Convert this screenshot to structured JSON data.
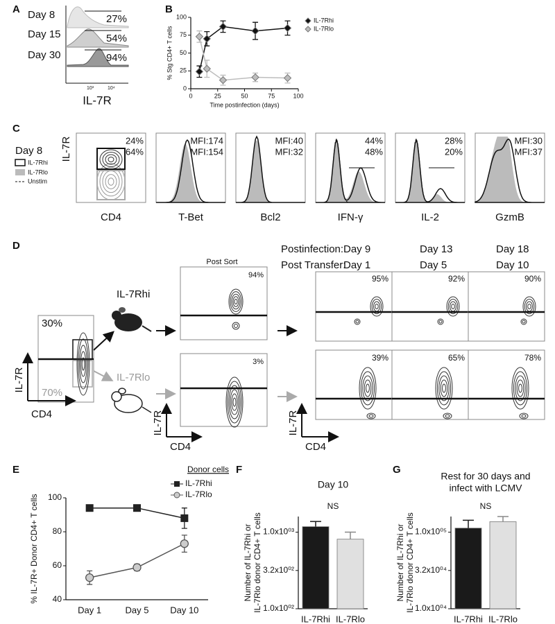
{
  "panel_labels": [
    "A",
    "B",
    "C",
    "D",
    "E",
    "F",
    "G"
  ],
  "panel_a": {
    "rows": [
      "Day 8",
      "Day 15",
      "Day 30"
    ],
    "percents": [
      "27%",
      "54%",
      "94%"
    ],
    "xlabel": "IL-7R",
    "ticks": [
      "10³",
      "10⁴"
    ]
  },
  "panel_c": {
    "day": "Day 8",
    "legend": [
      "IL-7Rhi",
      "IL-7Rlo",
      "Unstim"
    ],
    "ylabel": "IL-7R",
    "plots": [
      {
        "xlabel": "CD4",
        "hi": "24%",
        "lo": "64%"
      },
      {
        "xlabel": "T-Bet",
        "hi": "MFI:174",
        "lo": "MFI:154"
      },
      {
        "xlabel": "Bcl2",
        "hi": "MFI:40",
        "lo": "MFI:32"
      },
      {
        "xlabel": "IFN-γ",
        "hi": "44%",
        "lo": "48%"
      },
      {
        "xlabel": "IL-2",
        "hi": "28%",
        "lo": "20%"
      },
      {
        "xlabel": "GzmB",
        "hi": "MFI:30",
        "lo": "MFI:37"
      }
    ]
  },
  "panel_d": {
    "pre_sort": {
      "hi": "30%",
      "lo": "70%",
      "ylabel": "IL-7R",
      "xlabel": "CD4"
    },
    "populations": [
      "IL-7Rhi",
      "IL-7Rlo"
    ],
    "post_sort": {
      "title": "Post  Sort",
      "hi": "94%",
      "lo": "3%",
      "ylabel": "IL-7R",
      "xlabel": "CD4"
    },
    "row_headers": [
      "Postinfection:",
      "Post Transfer:"
    ],
    "postinfection": [
      "Day 9",
      "Day 13",
      "Day 18"
    ],
    "post_transfer": [
      "Day 1",
      "Day 5",
      "Day 10"
    ],
    "hi_percents": [
      "95%",
      "92%",
      "90%"
    ],
    "lo_percents": [
      "39%",
      "65%",
      "78%"
    ],
    "ylabel": "IL-7R",
    "xlabel": "CD4"
  },
  "chart_data": [
    {
      "type": "line",
      "xlabel": "Time postinfection (days)",
      "ylabel": [
        "% Stg CD4+ T cells"
      ],
      "x": [
        8,
        15,
        30,
        60,
        90
      ],
      "series": [
        {
          "name": "IL-7Rhi",
          "color": "#111111",
          "marker": "diamond",
          "values": [
            24,
            70,
            87,
            81,
            85
          ],
          "errors": [
            8,
            10,
            8,
            12,
            10
          ]
        },
        {
          "name": "IL-7Rlo",
          "color": "#bdbdbd",
          "marker": "diamond",
          "values": [
            73,
            28,
            12,
            16,
            15
          ],
          "errors": [
            8,
            12,
            7,
            6,
            7
          ]
        }
      ],
      "xlim": [
        0,
        100
      ],
      "xticks": [
        0,
        25,
        50,
        75,
        100
      ],
      "ylim": [
        0,
        100
      ],
      "yticks": [
        0,
        25,
        50,
        75,
        100
      ],
      "legend": "upper right"
    },
    {
      "type": "line",
      "ylabel": [
        "% IL-7R+ Donor CD4+ T cells"
      ],
      "legend_title": "Donor cells",
      "categories": [
        "Day 1",
        "Day 5",
        "Day 10"
      ],
      "series": [
        {
          "name": "IL-7Rhi",
          "color": "#222222",
          "marker": "square",
          "values": [
            94,
            94,
            88
          ],
          "errors": [
            1,
            1,
            6
          ]
        },
        {
          "name": "IL-7Rlo",
          "color": "#555555",
          "marker": "circle",
          "values": [
            53,
            59,
            73
          ],
          "errors": [
            4,
            2,
            5
          ]
        }
      ],
      "ylim": [
        40,
        100
      ],
      "yticks": [
        40,
        60,
        80,
        100
      ],
      "legend": "upper right"
    },
    {
      "type": "bar",
      "title": [
        "Day 10"
      ],
      "annotation": "NS",
      "ylabel": [
        "Number of IL-7Rhi or",
        "IL-7Rlo donor CD4+ T cells"
      ],
      "categories": [
        "IL-7Rhi",
        "IL-7Rlo"
      ],
      "values": [
        1180,
        810
      ],
      "errors": [
        200,
        190
      ],
      "colors": [
        "#1a1a1a",
        "#e0e0e0"
      ],
      "label_colors": [
        "#000000",
        "#999999"
      ],
      "log_scale": true,
      "ylim": [
        100,
        1600
      ],
      "yticks": [
        {
          "value": 100,
          "label": "1.0x10⁰²"
        },
        {
          "value": 316,
          "label": "3.2x10⁰²"
        },
        {
          "value": 1000,
          "label": "1.0x10⁰³"
        }
      ]
    },
    {
      "type": "bar",
      "title": [
        "Rest for 30 days and",
        "infect with LCMV"
      ],
      "annotation": "NS",
      "ylabel": [
        "Number of IL-7Rhi or",
        "IL-7Rlo donor CD4+ T cells"
      ],
      "categories": [
        "IL-7Rhi",
        "IL-7Rlo"
      ],
      "values": [
        113000,
        137000
      ],
      "errors": [
        30000,
        23000
      ],
      "colors": [
        "#1a1a1a",
        "#e0e0e0"
      ],
      "label_colors": [
        "#000000",
        "#999999"
      ],
      "log_scale": true,
      "ylim": [
        10000,
        160000
      ],
      "yticks": [
        {
          "value": 10000,
          "label": "1.0x10⁰⁴"
        },
        {
          "value": 31600,
          "label": "3.2x10⁰⁴"
        },
        {
          "value": 100000,
          "label": "1.0x10⁰⁵"
        }
      ]
    }
  ]
}
